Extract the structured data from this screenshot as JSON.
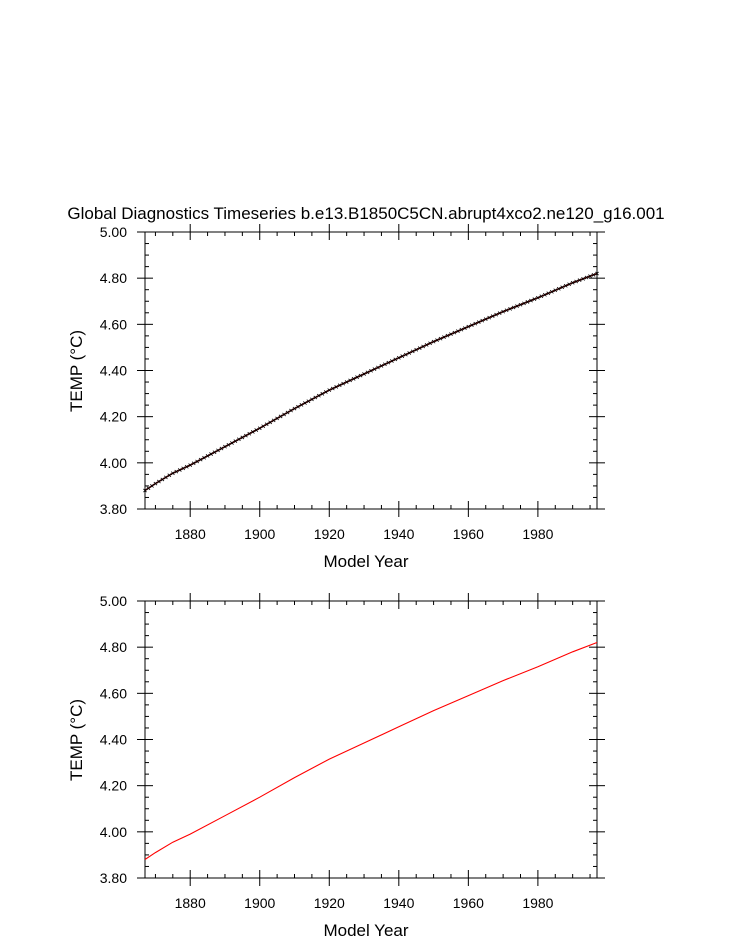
{
  "title": "Global Diagnostics Timeseries b.e13.B1850C5CN.abrupt4xco2.ne120_g16.001",
  "colors": {
    "top_line": "#5a0000",
    "top_markers": "#000000",
    "bottom_line": "#ff0000"
  },
  "chart_data": [
    {
      "type": "line",
      "panel": "top",
      "title": "Global Diagnostics Timeseries b.e13.B1850C5CN.abrupt4xco2.ne120_g16.001",
      "xlabel": "Model Year",
      "ylabel": "TEMP (°C)",
      "xlim": [
        1867,
        1997
      ],
      "ylim": [
        3.8,
        5.0
      ],
      "x_ticks": [
        "1880",
        "1900",
        "1920",
        "1940",
        "1960",
        "1980"
      ],
      "y_ticks": [
        "3.80",
        "4.00",
        "4.20",
        "4.40",
        "4.60",
        "4.80",
        "5.00"
      ],
      "series": [
        {
          "x": [
            1867,
            1870,
            1875,
            1880,
            1890,
            1900,
            1910,
            1920,
            1930,
            1940,
            1950,
            1960,
            1970,
            1980,
            1990,
            1997
          ],
          "y": [
            3.88,
            3.91,
            3.955,
            3.99,
            4.07,
            4.15,
            4.235,
            4.315,
            4.385,
            4.455,
            4.525,
            4.59,
            4.655,
            4.715,
            4.78,
            4.82
          ]
        }
      ]
    },
    {
      "type": "line",
      "panel": "bottom",
      "xlabel": "Model Year",
      "ylabel": "TEMP (°C)",
      "xlim": [
        1867,
        1997
      ],
      "ylim": [
        3.8,
        5.0
      ],
      "x_ticks": [
        "1880",
        "1900",
        "1920",
        "1940",
        "1960",
        "1980"
      ],
      "y_ticks": [
        "3.80",
        "4.00",
        "4.20",
        "4.40",
        "4.60",
        "4.80",
        "5.00"
      ],
      "series": [
        {
          "x": [
            1867,
            1870,
            1875,
            1880,
            1890,
            1900,
            1910,
            1920,
            1930,
            1940,
            1950,
            1960,
            1970,
            1980,
            1990,
            1997
          ],
          "y": [
            3.88,
            3.91,
            3.955,
            3.99,
            4.07,
            4.15,
            4.235,
            4.315,
            4.385,
            4.455,
            4.525,
            4.59,
            4.655,
            4.715,
            4.78,
            4.82
          ]
        }
      ]
    }
  ]
}
